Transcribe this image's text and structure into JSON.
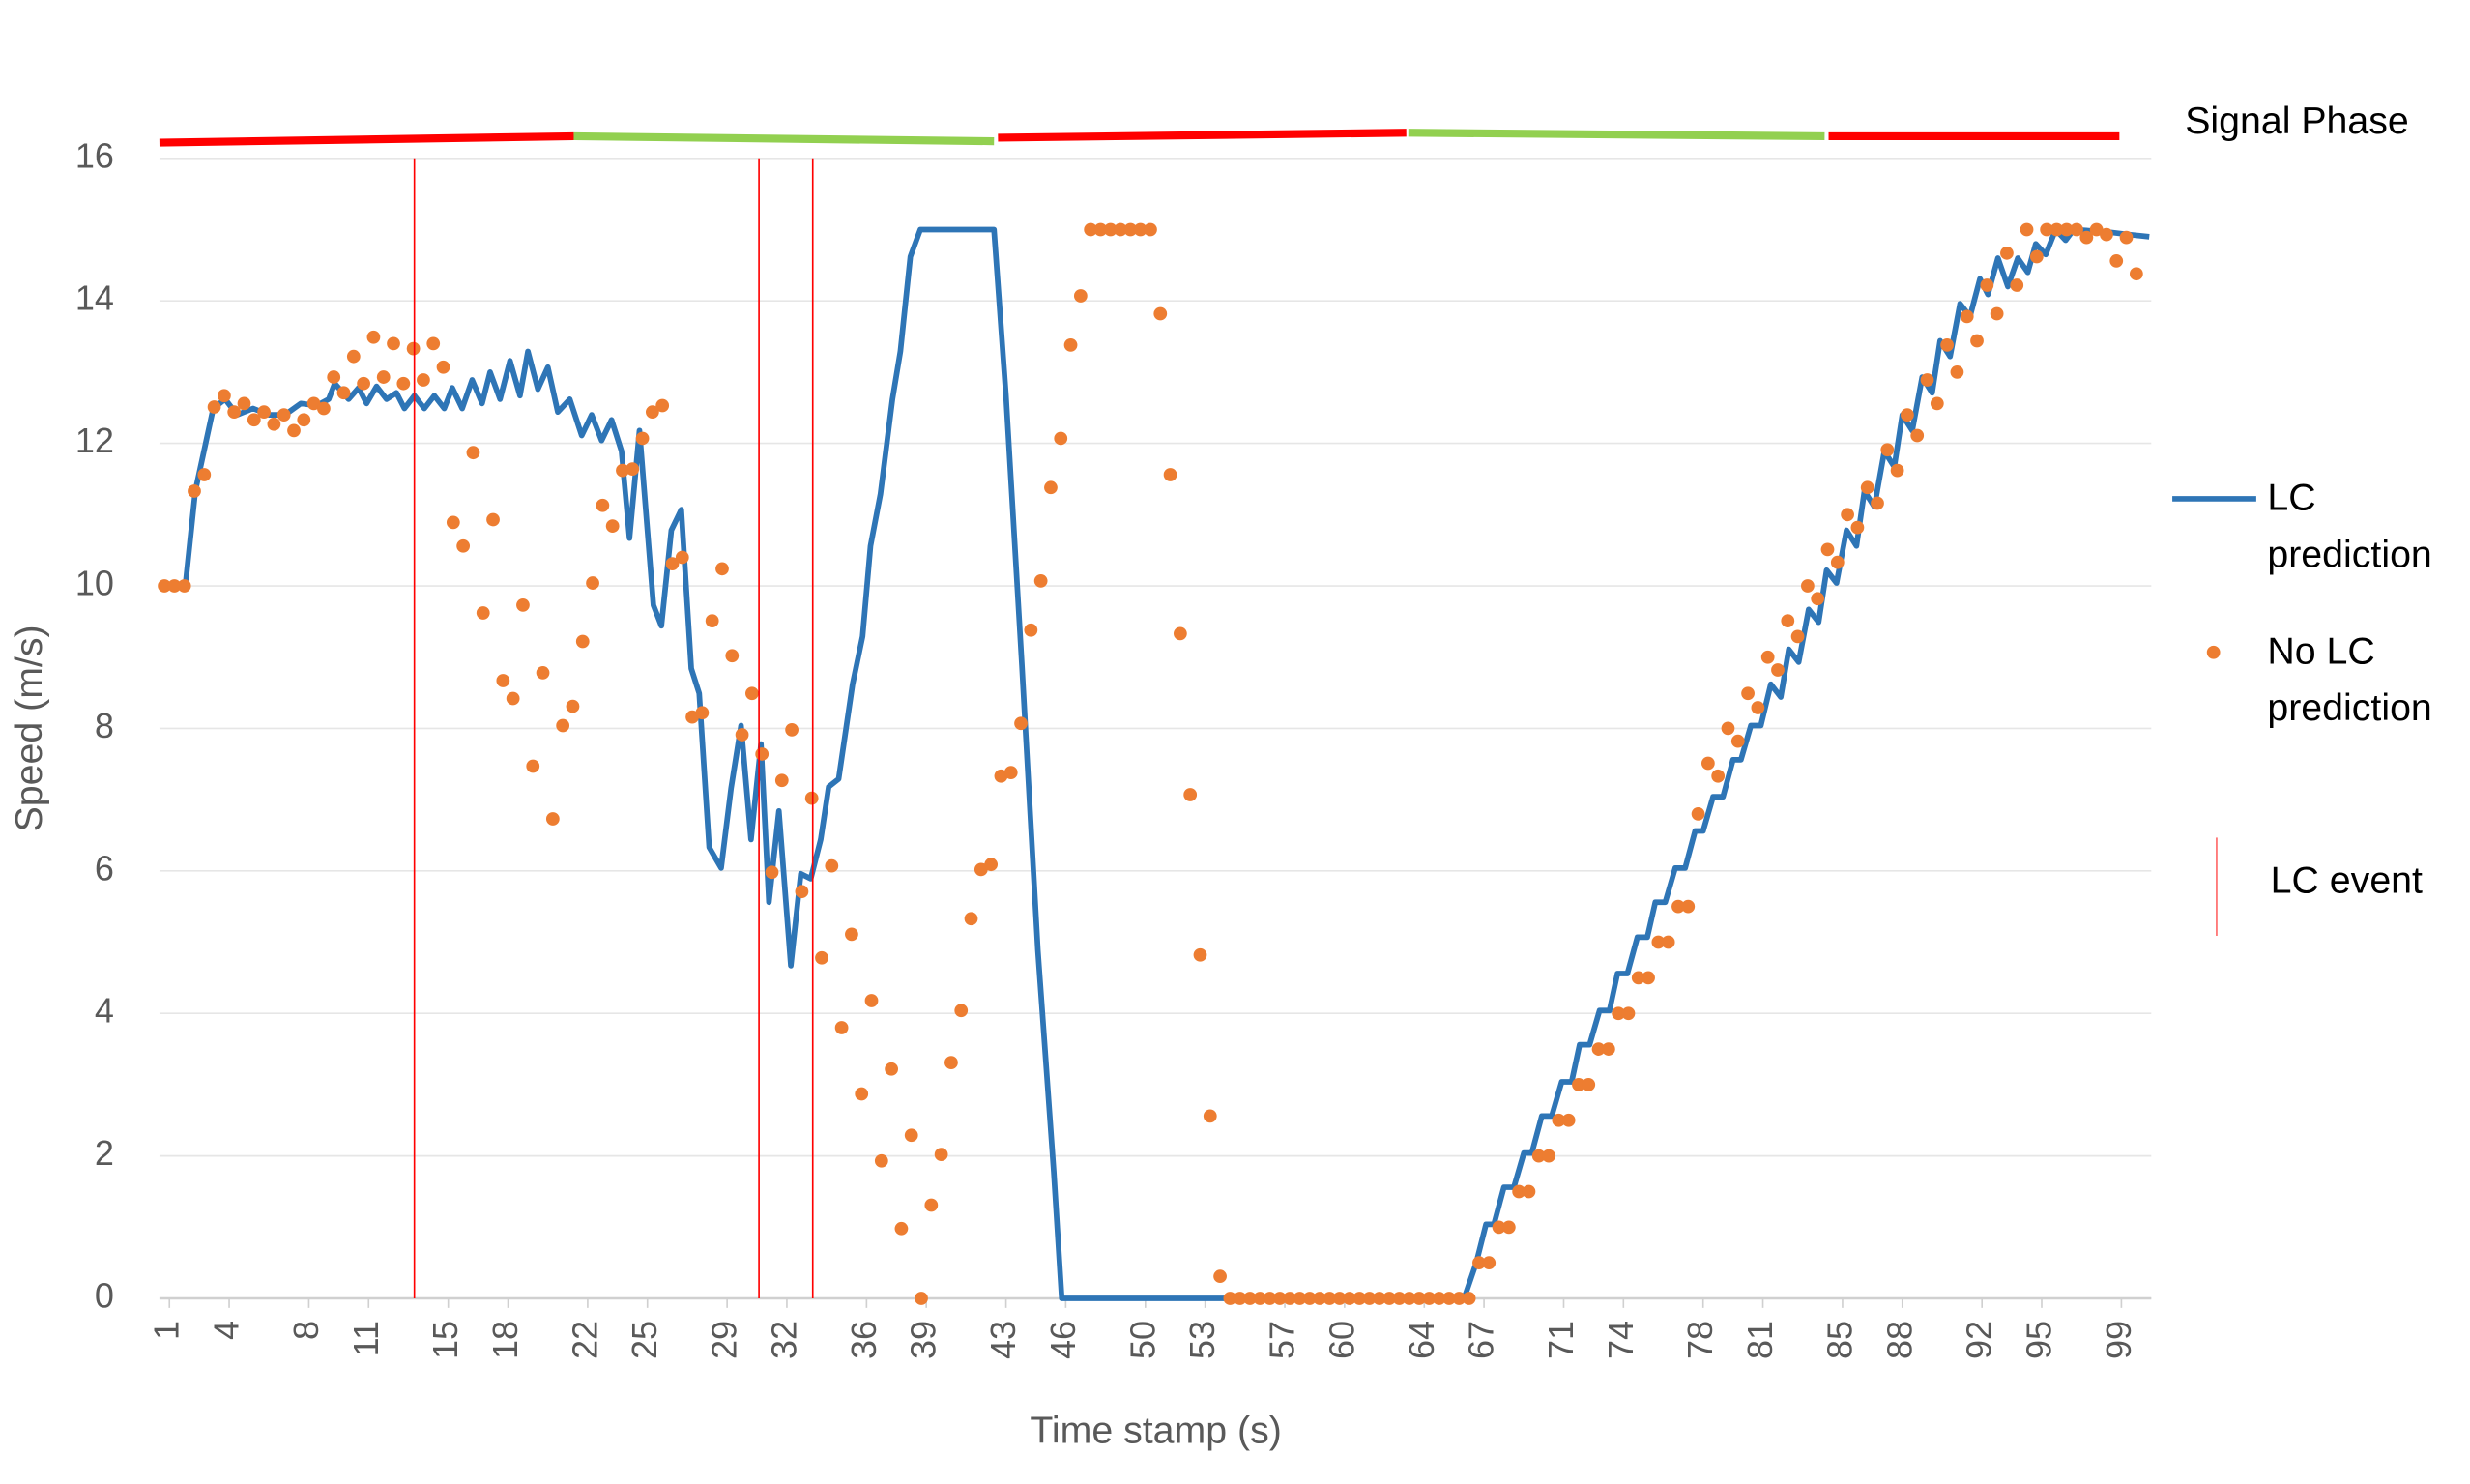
{
  "chart_data": {
    "type": "line",
    "x_label": "Time stamp (s)",
    "y_label": "Speed (m/s)",
    "xlim": [
      0.5,
      100.5
    ],
    "xticks": [
      1,
      4,
      8,
      11,
      15,
      18,
      22,
      25,
      29,
      32,
      36,
      39,
      43,
      46,
      50,
      53,
      57,
      60,
      64,
      67,
      71,
      74,
      78,
      81,
      85,
      88,
      92,
      95,
      99
    ],
    "ylim": [
      0,
      16
    ],
    "yticks": [
      0,
      2,
      4,
      6,
      8,
      10,
      12,
      14,
      16
    ],
    "grid": true,
    "series": [
      {
        "name": "LC prediction",
        "type": "line",
        "color": "#2e75b6",
        "x": [
          1.0,
          1.8,
          2.3,
          3.2,
          3.8,
          4.4,
          5.2,
          6.0,
          6.8,
          7.6,
          8.4,
          9.0,
          9.3,
          10.0,
          10.5,
          10.9,
          11.4,
          11.9,
          12.4,
          12.8,
          13.3,
          13.8,
          14.3,
          14.8,
          15.2,
          15.7,
          16.2,
          16.7,
          17.1,
          17.6,
          18.1,
          18.6,
          19.0,
          19.5,
          20.0,
          20.5,
          21.1,
          21.7,
          22.2,
          22.7,
          23.2,
          23.7,
          24.1,
          24.6,
          25.3,
          25.7,
          26.2,
          26.7,
          27.2,
          27.6,
          28.1,
          28.7,
          29.2,
          29.7,
          30.2,
          30.7,
          31.1,
          31.6,
          32.2,
          32.7,
          33.2,
          33.7,
          34.1,
          34.6,
          35.3,
          35.8,
          36.2,
          36.7,
          37.3,
          37.7,
          38.2,
          38.7,
          42.4,
          43.0,
          43.8,
          44.6,
          45.4,
          45.8,
          53.5,
          65.6,
          66.0,
          66.6,
          67.1,
          67.5,
          68.0,
          68.5,
          69.0,
          69.4,
          69.9,
          70.4,
          70.9,
          71.4,
          71.8,
          72.3,
          72.8,
          73.3,
          73.7,
          74.2,
          74.7,
          75.2,
          75.6,
          76.1,
          76.6,
          77.1,
          77.6,
          78.0,
          78.5,
          79.0,
          79.5,
          79.9,
          80.4,
          80.9,
          81.4,
          81.9,
          82.3,
          82.8,
          83.3,
          83.8,
          84.2,
          84.7,
          85.2,
          85.7,
          86.1,
          86.6,
          87.1,
          87.6,
          88.0,
          88.5,
          89.0,
          89.5,
          89.9,
          90.4,
          90.9,
          91.4,
          91.9,
          92.3,
          92.8,
          93.3,
          93.8,
          94.3,
          94.7,
          95.2,
          95.7,
          96.2,
          96.6,
          98.2,
          99.4,
          100.4
        ],
        "values": [
          10.0,
          10.0,
          11.33,
          12.49,
          12.62,
          12.4,
          12.49,
          12.4,
          12.4,
          12.56,
          12.53,
          12.62,
          12.84,
          12.62,
          12.78,
          12.56,
          12.8,
          12.62,
          12.71,
          12.49,
          12.67,
          12.49,
          12.67,
          12.49,
          12.78,
          12.49,
          12.89,
          12.56,
          13.0,
          12.62,
          13.16,
          12.67,
          13.29,
          12.76,
          13.07,
          12.44,
          12.62,
          12.11,
          12.4,
          12.04,
          12.33,
          11.89,
          10.67,
          12.18,
          9.73,
          9.44,
          10.78,
          11.07,
          8.84,
          8.49,
          6.33,
          6.04,
          7.16,
          8.04,
          6.44,
          7.78,
          5.56,
          6.84,
          4.67,
          5.96,
          5.89,
          6.44,
          7.18,
          7.29,
          8.62,
          9.29,
          10.56,
          11.29,
          12.62,
          13.29,
          14.62,
          15.0,
          15.0,
          12.67,
          8.89,
          4.89,
          1.78,
          0,
          0,
          0,
          0,
          0.49,
          1.04,
          1.04,
          1.56,
          1.56,
          2.04,
          2.04,
          2.56,
          2.56,
          3.04,
          3.04,
          3.56,
          3.56,
          4.04,
          4.04,
          4.56,
          4.56,
          5.07,
          5.07,
          5.56,
          5.56,
          6.04,
          6.04,
          6.56,
          6.56,
          7.04,
          7.04,
          7.56,
          7.56,
          8.04,
          8.04,
          8.62,
          8.44,
          9.11,
          8.93,
          9.67,
          9.49,
          10.22,
          10.04,
          10.78,
          10.56,
          11.33,
          11.11,
          11.89,
          11.67,
          12.4,
          12.18,
          12.93,
          12.71,
          13.44,
          13.22,
          13.96,
          13.78,
          14.31,
          14.09,
          14.6,
          14.2,
          14.6,
          14.4,
          14.8,
          14.65,
          15.0,
          14.85,
          15.0,
          14.97,
          14.93,
          14.9
        ]
      },
      {
        "name": "No LC prediction",
        "type": "scatter",
        "color": "#ed7d31",
        "x": [
          0.75,
          1.25,
          1.75,
          2.25,
          2.75,
          3.25,
          3.75,
          4.25,
          4.75,
          5.25,
          5.75,
          6.25,
          6.75,
          7.25,
          7.75,
          8.25,
          8.75,
          9.25,
          9.75,
          10.25,
          10.75,
          11.25,
          11.75,
          12.25,
          12.75,
          13.25,
          13.75,
          14.25,
          14.75,
          15.25,
          15.75,
          16.25,
          16.75,
          17.25,
          17.75,
          18.25,
          18.75,
          19.25,
          19.75,
          20.25,
          20.75,
          21.25,
          21.75,
          22.25,
          22.75,
          23.25,
          23.75,
          24.25,
          24.75,
          25.25,
          25.75,
          26.25,
          26.75,
          27.25,
          27.75,
          28.25,
          28.75,
          29.25,
          29.75,
          30.25,
          30.75,
          31.25,
          31.75,
          32.25,
          32.75,
          33.25,
          33.75,
          34.25,
          34.75,
          35.25,
          35.75,
          36.25,
          36.75,
          37.25,
          37.75,
          38.25,
          38.75,
          39.25,
          39.75,
          40.25,
          40.75,
          41.25,
          41.75,
          42.25,
          42.75,
          43.25,
          43.75,
          44.25,
          44.75,
          45.25,
          45.75,
          46.25,
          46.75,
          47.25,
          47.75,
          48.25,
          48.75,
          49.25,
          49.75,
          50.25,
          50.75,
          51.25,
          51.75,
          52.25,
          52.75,
          53.25,
          53.75,
          54.25,
          54.75,
          55.25,
          55.75,
          56.25,
          56.75,
          57.25,
          57.75,
          58.25,
          58.75,
          59.25,
          59.75,
          60.25,
          60.75,
          61.25,
          61.75,
          62.25,
          62.75,
          63.25,
          63.75,
          64.25,
          64.75,
          65.25,
          65.75,
          66.25,
          66.75,
          67.25,
          67.75,
          68.25,
          68.75,
          69.25,
          69.75,
          70.25,
          70.75,
          71.25,
          71.75,
          72.25,
          72.75,
          73.25,
          73.75,
          74.25,
          74.75,
          75.25,
          75.75,
          76.25,
          76.75,
          77.25,
          77.75,
          78.25,
          78.75,
          79.25,
          79.75,
          80.25,
          80.75,
          81.25,
          81.75,
          82.25,
          82.75,
          83.25,
          83.75,
          84.25,
          84.75,
          85.25,
          85.75,
          86.25,
          86.75,
          87.25,
          87.75,
          88.25,
          88.75,
          89.25,
          89.75,
          90.25,
          90.75,
          91.25,
          91.75,
          92.25,
          92.75,
          93.25,
          93.75,
          94.25,
          94.75,
          95.25,
          95.75,
          96.25,
          96.75,
          97.25,
          97.75,
          98.25,
          98.75,
          99.25,
          99.75
        ],
        "values": [
          10.0,
          10.0,
          10.0,
          11.33,
          11.56,
          12.51,
          12.67,
          12.44,
          12.56,
          12.33,
          12.44,
          12.27,
          12.4,
          12.18,
          12.33,
          12.56,
          12.49,
          12.93,
          12.71,
          13.22,
          12.84,
          13.49,
          12.93,
          13.4,
          12.84,
          13.33,
          12.89,
          13.4,
          13.07,
          10.89,
          10.56,
          11.87,
          9.62,
          10.93,
          8.67,
          8.42,
          9.73,
          7.47,
          8.78,
          6.73,
          8.04,
          8.31,
          9.22,
          10.04,
          11.13,
          10.84,
          11.62,
          11.64,
          12.07,
          12.44,
          12.53,
          10.31,
          10.4,
          8.16,
          8.22,
          9.51,
          10.24,
          9.02,
          7.91,
          8.49,
          7.64,
          5.98,
          7.27,
          7.98,
          5.71,
          7.02,
          4.78,
          6.07,
          3.8,
          5.11,
          2.87,
          4.18,
          1.93,
          3.22,
          0.98,
          2.29,
          0.0,
          1.31,
          2.02,
          3.31,
          4.04,
          5.33,
          6.02,
          6.09,
          7.33,
          7.38,
          8.07,
          9.38,
          10.07,
          11.38,
          12.07,
          13.38,
          14.07,
          15.0,
          15.0,
          15.0,
          15.0,
          15.0,
          15.0,
          15.0,
          13.82,
          11.56,
          9.33,
          7.07,
          4.82,
          2.56,
          0.31,
          0,
          0,
          0,
          0,
          0,
          0,
          0,
          0,
          0,
          0,
          0,
          0,
          0,
          0,
          0,
          0,
          0,
          0,
          0,
          0,
          0,
          0,
          0,
          0,
          0,
          0.5,
          0.5,
          1.0,
          1.0,
          1.5,
          1.5,
          2.0,
          2.0,
          2.5,
          2.5,
          3.0,
          3.0,
          3.5,
          3.5,
          4.0,
          4.0,
          4.5,
          4.5,
          5.0,
          5.0,
          5.5,
          5.5,
          6.8,
          7.51,
          7.33,
          8.0,
          7.82,
          8.49,
          8.29,
          9.0,
          8.82,
          9.51,
          9.29,
          10.0,
          9.82,
          10.51,
          10.33,
          11.0,
          10.82,
          11.38,
          11.16,
          11.91,
          11.62,
          12.4,
          12.11,
          12.89,
          12.56,
          13.38,
          13.0,
          13.78,
          13.44,
          14.22,
          13.82,
          14.67,
          14.22,
          15,
          14.62,
          15,
          15,
          15,
          15,
          14.89,
          15,
          14.93,
          14.56,
          14.89,
          14.38
        ]
      },
      {
        "name": "LC event",
        "type": "vline",
        "color": "#ff0000",
        "x": [
          13.3,
          30.6,
          33.3
        ]
      }
    ],
    "signal_phase": {
      "label": "Signal Phase",
      "segments": [
        {
          "color": "#ff0000",
          "x": [
            0.5,
            21.3
          ],
          "y": [
            16.22,
            16.31
          ]
        },
        {
          "color": "#92d050",
          "x": [
            21.3,
            42.4
          ],
          "y": [
            16.31,
            16.24
          ]
        },
        {
          "color": "#ff0000",
          "x": [
            42.6,
            63.1
          ],
          "y": [
            16.29,
            16.36
          ]
        },
        {
          "color": "#92d050",
          "x": [
            63.2,
            84.1
          ],
          "y": [
            16.36,
            16.31
          ]
        },
        {
          "color": "#ff0000",
          "x": [
            84.3,
            98.9
          ],
          "y": [
            16.31,
            16.31
          ]
        }
      ]
    }
  }
}
